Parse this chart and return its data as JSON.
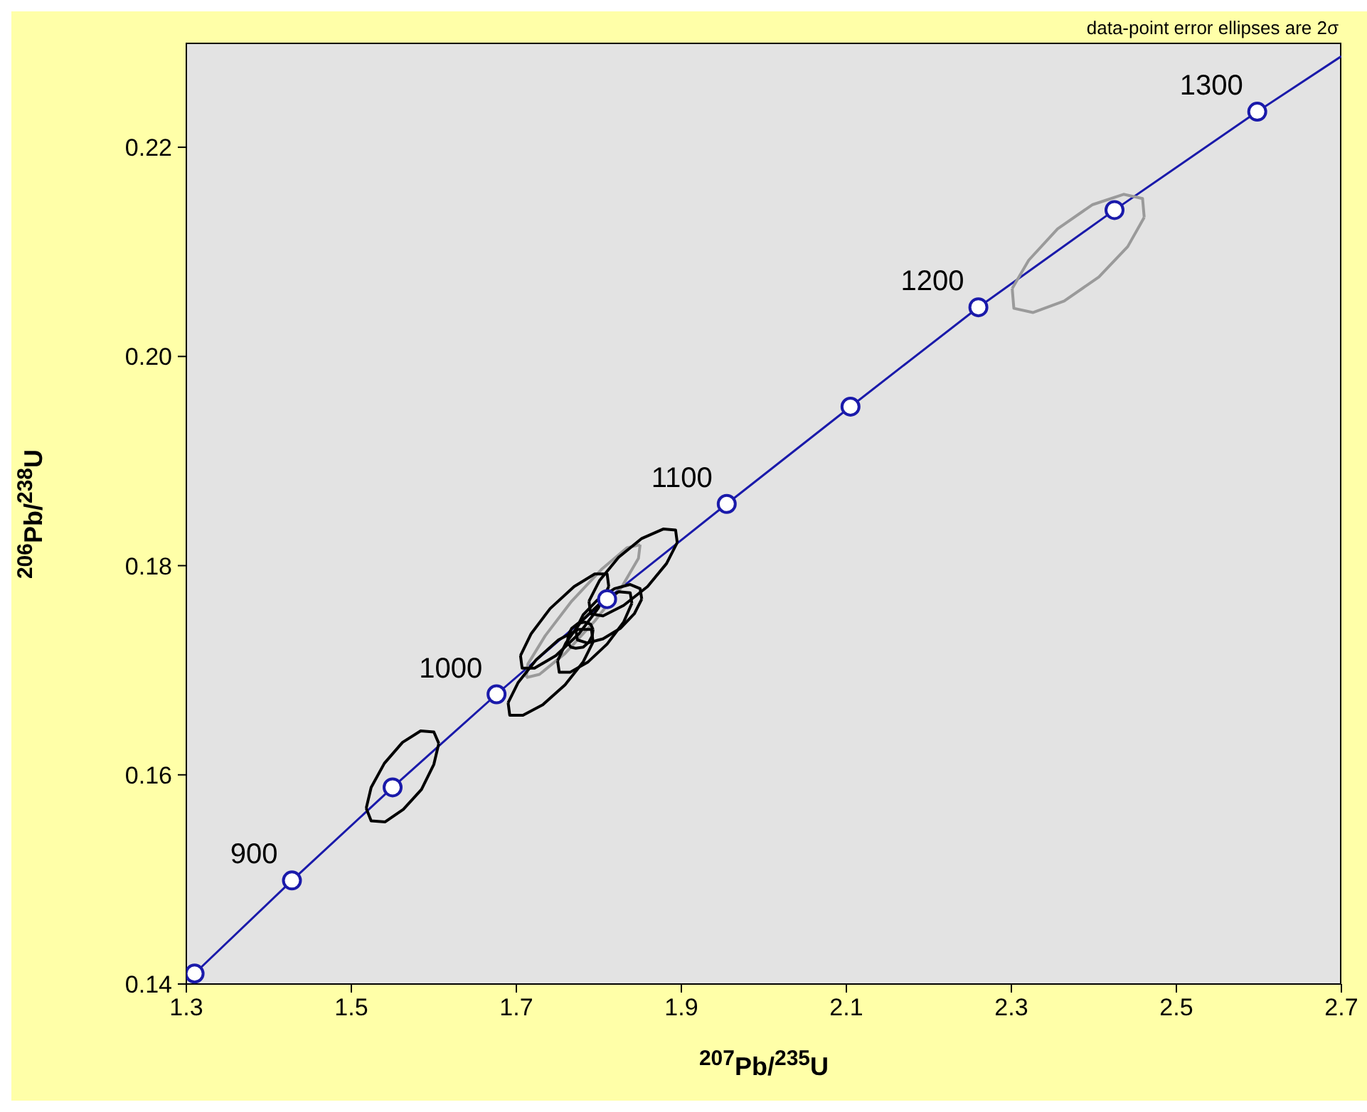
{
  "chart_data": {
    "type": "line",
    "xlabel": "$^{207}$Pb/$^{235}$U",
    "ylabel": "$^{206}$Pb/$^{238}$U",
    "xlim": [
      1.3,
      2.7
    ],
    "xticks": [
      1.3,
      1.5,
      1.7,
      1.9,
      2.1,
      2.3,
      2.5,
      2.7
    ],
    "ylim": [
      0.14,
      0.23
    ],
    "yticks": [
      0.14,
      0.16,
      0.18,
      {
        "value": 0.2,
        "label": "0.20"
      },
      0.22
    ],
    "grid": false,
    "annotations": [
      "data-point error ellipses are 2σ",
      {
        "text": "900",
        "x": 1.428,
        "y": 0.1499
      },
      {
        "text": "1000",
        "x": 1.676,
        "y": 0.1677
      },
      {
        "text": "1100",
        "x": 1.955,
        "y": 0.1859
      },
      {
        "text": "1200",
        "x": 2.26,
        "y": 0.2047
      },
      {
        "text": "1300",
        "x": 2.598,
        "y": 0.2234
      }
    ],
    "series": [
      {
        "type": "line",
        "color": "#1a1aaa",
        "marker": "none",
        "x": [
          1.31,
          1.428,
          1.55,
          1.676,
          1.81,
          1.955,
          2.105,
          2.26,
          2.425,
          2.598,
          2.7
        ],
        "values": [
          0.141,
          0.1499,
          0.1588,
          0.1677,
          0.1768,
          0.1859,
          0.1952,
          0.2047,
          0.214,
          0.2234,
          0.2287
        ]
      },
      {
        "type": "line",
        "color": "#000000",
        "marker": "none",
        "x": [
          1.518,
          1.524,
          1.541,
          1.563,
          1.585,
          1.6,
          1.606
        ],
        "values": [
          0.1568,
          0.1556,
          0.1555,
          0.1567,
          0.1586,
          0.161,
          0.163
        ]
      },
      {
        "type": "line",
        "color": "#000000",
        "marker": "none",
        "x": [
          1.518,
          1.524,
          1.54,
          1.562,
          1.584,
          1.6,
          1.606
        ],
        "values": [
          0.1568,
          0.1588,
          0.1611,
          0.1631,
          0.1642,
          0.1641,
          0.163
        ]
      },
      {
        "type": "line",
        "color": "#9a9a9a",
        "marker": "none",
        "x": [
          2.301,
          2.303,
          2.326,
          2.364,
          2.406,
          2.441,
          2.461
        ],
        "values": [
          0.2065,
          0.2046,
          0.2042,
          0.2053,
          0.2076,
          0.2105,
          0.2133
        ]
      },
      {
        "type": "line",
        "color": "#9a9a9a",
        "marker": "none",
        "x": [
          2.301,
          2.321,
          2.356,
          2.398,
          2.436,
          2.459,
          2.461
        ],
        "values": [
          0.2065,
          0.2092,
          0.2122,
          0.2145,
          0.2155,
          0.2151,
          0.2133
        ]
      },
      {
        "type": "line",
        "color": "#9a9a9a",
        "marker": "none",
        "x": [
          1.712,
          1.728,
          1.759,
          1.795,
          1.828,
          1.848,
          1.85
        ],
        "values": [
          0.1693,
          0.1696,
          0.1716,
          0.1747,
          0.178,
          0.1807,
          0.182
        ]
      },
      {
        "type": "line",
        "color": "#9a9a9a",
        "marker": "none",
        "x": [
          1.712,
          1.714,
          1.735,
          1.767,
          1.804,
          1.834,
          1.85
        ],
        "values": [
          0.1693,
          0.1706,
          0.1733,
          0.1766,
          0.1797,
          0.1817,
          0.182
        ]
      },
      {
        "type": "line",
        "color": "#000000",
        "marker": "none",
        "x": [
          1.788,
          1.79,
          1.805,
          1.83,
          1.859,
          1.882,
          1.895
        ],
        "values": [
          0.1766,
          0.1754,
          0.1752,
          0.1762,
          0.178,
          0.1802,
          0.1822
        ]
      },
      {
        "type": "line",
        "color": "#000000",
        "marker": "none",
        "x": [
          1.788,
          1.801,
          1.824,
          1.852,
          1.878,
          1.893,
          1.895
        ],
        "values": [
          0.1766,
          0.1786,
          0.1808,
          0.1826,
          0.1835,
          0.1834,
          0.1822
        ]
      },
      {
        "type": "line",
        "color": "#000000",
        "marker": "none",
        "x": [
          1.772,
          1.774,
          1.786,
          1.805,
          1.826,
          1.843,
          1.852
        ],
        "values": [
          0.1739,
          0.1729,
          0.1726,
          0.173,
          0.174,
          0.1754,
          0.1768
        ]
      },
      {
        "type": "line",
        "color": "#000000",
        "marker": "none",
        "x": [
          1.772,
          1.781,
          1.798,
          1.819,
          1.838,
          1.85,
          1.852
        ],
        "values": [
          0.1739,
          0.1753,
          0.1767,
          0.1778,
          0.1782,
          0.1778,
          0.1768
        ]
      },
      {
        "type": "line",
        "color": "#000000",
        "marker": "none",
        "x": [
          1.69,
          1.692,
          1.708,
          1.732,
          1.759,
          1.781,
          1.793
        ],
        "values": [
          0.1669,
          0.1657,
          0.1657,
          0.1667,
          0.1686,
          0.1708,
          0.1727
        ]
      },
      {
        "type": "line",
        "color": "#000000",
        "marker": "none",
        "x": [
          1.69,
          1.702,
          1.724,
          1.751,
          1.775,
          1.791,
          1.793
        ],
        "values": [
          0.1669,
          0.1688,
          0.171,
          0.1729,
          0.1739,
          0.1739,
          0.1727
        ]
      },
      {
        "type": "line",
        "color": "#000000",
        "marker": "none",
        "x": [
          1.705,
          1.707,
          1.722,
          1.748,
          1.776,
          1.799,
          1.812
        ],
        "values": [
          0.1714,
          0.1702,
          0.1702,
          0.1714,
          0.1735,
          0.1759,
          0.178
        ]
      },
      {
        "type": "line",
        "color": "#000000",
        "marker": "none",
        "x": [
          1.705,
          1.718,
          1.741,
          1.77,
          1.795,
          1.81,
          1.812
        ],
        "values": [
          0.1714,
          0.1735,
          0.1759,
          0.178,
          0.1792,
          0.1792,
          0.178
        ]
      },
      {
        "type": "line",
        "color": "#000000",
        "marker": "none",
        "x": [
          1.75,
          1.752,
          1.765,
          1.787,
          1.81,
          1.83,
          1.84
        ],
        "values": [
          0.1709,
          0.1698,
          0.1698,
          0.1708,
          0.1725,
          0.1746,
          0.1764
        ]
      },
      {
        "type": "line",
        "color": "#000000",
        "marker": "none",
        "x": [
          1.75,
          1.76,
          1.779,
          1.803,
          1.824,
          1.838,
          1.84
        ],
        "values": [
          0.1709,
          0.1726,
          0.1747,
          0.1765,
          0.1775,
          0.1774,
          0.1764
        ]
      },
      {
        "type": "line",
        "color": "#000000",
        "marker": "none",
        "x": [
          1.762,
          1.766,
          1.772,
          1.781,
          1.788,
          1.792,
          1.793
        ],
        "values": [
          0.1727,
          0.1722,
          0.1721,
          0.1722,
          0.1727,
          0.1733,
          0.1739
        ]
      },
      {
        "type": "line",
        "color": "#000000",
        "marker": "none",
        "x": [
          1.762,
          1.763,
          1.767,
          1.775,
          1.783,
          1.79,
          1.793
        ],
        "values": [
          0.1727,
          0.1734,
          0.174,
          0.1745,
          0.1746,
          0.1744,
          0.1739
        ]
      },
      {
        "type": "scatter",
        "color": "#1a1aaa",
        "marker": "circle",
        "x": [
          1.31,
          1.428,
          1.55,
          1.676,
          1.81,
          1.955,
          2.105,
          2.26,
          2.425,
          2.598
        ],
        "values": [
          0.141,
          0.1499,
          0.1588,
          0.1677,
          0.1768,
          0.1859,
          0.1952,
          0.2047,
          0.214,
          0.2234
        ]
      }
    ]
  }
}
